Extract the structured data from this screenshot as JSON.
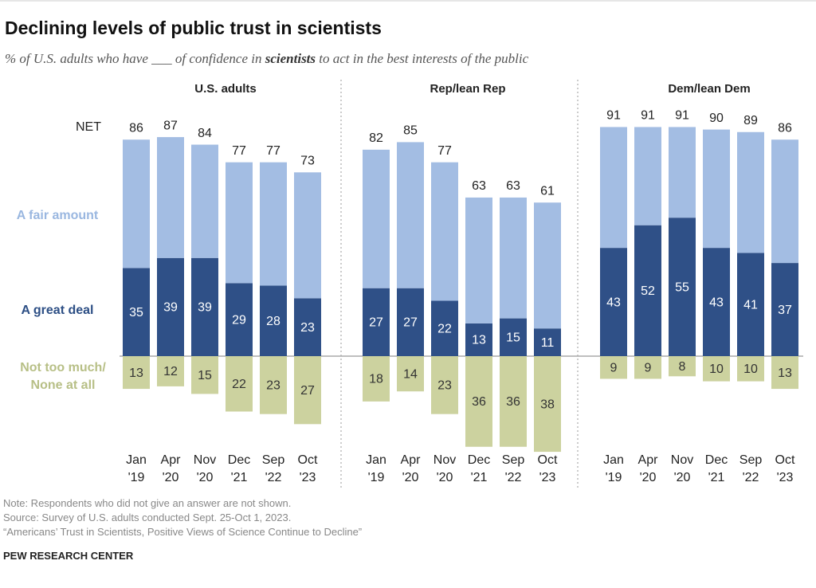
{
  "header": {
    "title": "Declining levels of public trust in scientists",
    "subtitle": [
      "% of U.S. adults who have ___ of confidence in ",
      "scientists",
      " to act in the best interests of the public"
    ]
  },
  "chart_data": [
    {
      "type": "bar",
      "title": "U.S. adults",
      "totals_name": "NET",
      "categories": [
        "Jan '19",
        "Apr '20",
        "Nov '20",
        "Dec '21",
        "Sep '22",
        "Oct '23"
      ],
      "totals": [
        86,
        87,
        84,
        77,
        77,
        73
      ],
      "series": [
        {
          "name": "A great deal",
          "color": "#2f5087",
          "labels": true,
          "values": [
            35,
            39,
            39,
            29,
            28,
            23
          ]
        },
        {
          "name": "A fair amount",
          "color": "#a3bde3",
          "values": [
            51,
            48,
            45,
            48,
            49,
            50
          ]
        },
        {
          "name": "Not too much/ None at all",
          "color": "#ccd29f",
          "labels": true,
          "side": "below",
          "values": [
            13,
            12,
            15,
            22,
            23,
            27
          ]
        }
      ]
    },
    {
      "type": "bar",
      "title": "Rep/lean Rep",
      "categories": [
        "Jan '19",
        "Apr '20",
        "Nov '20",
        "Dec '21",
        "Sep '22",
        "Oct '23"
      ],
      "totals": [
        82,
        85,
        77,
        63,
        63,
        61
      ],
      "series": [
        {
          "color": "#2f5087",
          "labels": true,
          "values": [
            27,
            27,
            22,
            13,
            15,
            11
          ]
        },
        {
          "color": "#a3bde3",
          "values": [
            55,
            58,
            55,
            50,
            48,
            50
          ]
        },
        {
          "color": "#ccd29f",
          "labels": true,
          "side": "below",
          "values": [
            18,
            14,
            23,
            36,
            36,
            38
          ]
        }
      ]
    },
    {
      "type": "bar",
      "title": "Dem/lean Dem",
      "categories": [
        "Jan '19",
        "Apr '20",
        "Nov '20",
        "Dec '21",
        "Sep '22",
        "Oct '23"
      ],
      "totals": [
        91,
        91,
        91,
        90,
        89,
        86
      ],
      "series": [
        {
          "color": "#2f5087",
          "labels": true,
          "values": [
            43,
            52,
            55,
            43,
            41,
            37
          ]
        },
        {
          "color": "#a3bde3",
          "values": [
            48,
            39,
            36,
            47,
            48,
            49
          ]
        },
        {
          "color": "#ccd29f",
          "labels": true,
          "side": "below",
          "values": [
            9,
            9,
            8,
            10,
            10,
            13
          ]
        }
      ]
    }
  ],
  "footer": {
    "notes": [
      "Note: Respondents who did not give an answer are not shown.",
      "Source: Survey of U.S. adults conducted Sept. 25-Oct 1, 2023.",
      "“Americans’ Trust in Scientists, Positive Views of Science Continue to Decline”"
    ],
    "org": "PEW RESEARCH CENTER"
  }
}
